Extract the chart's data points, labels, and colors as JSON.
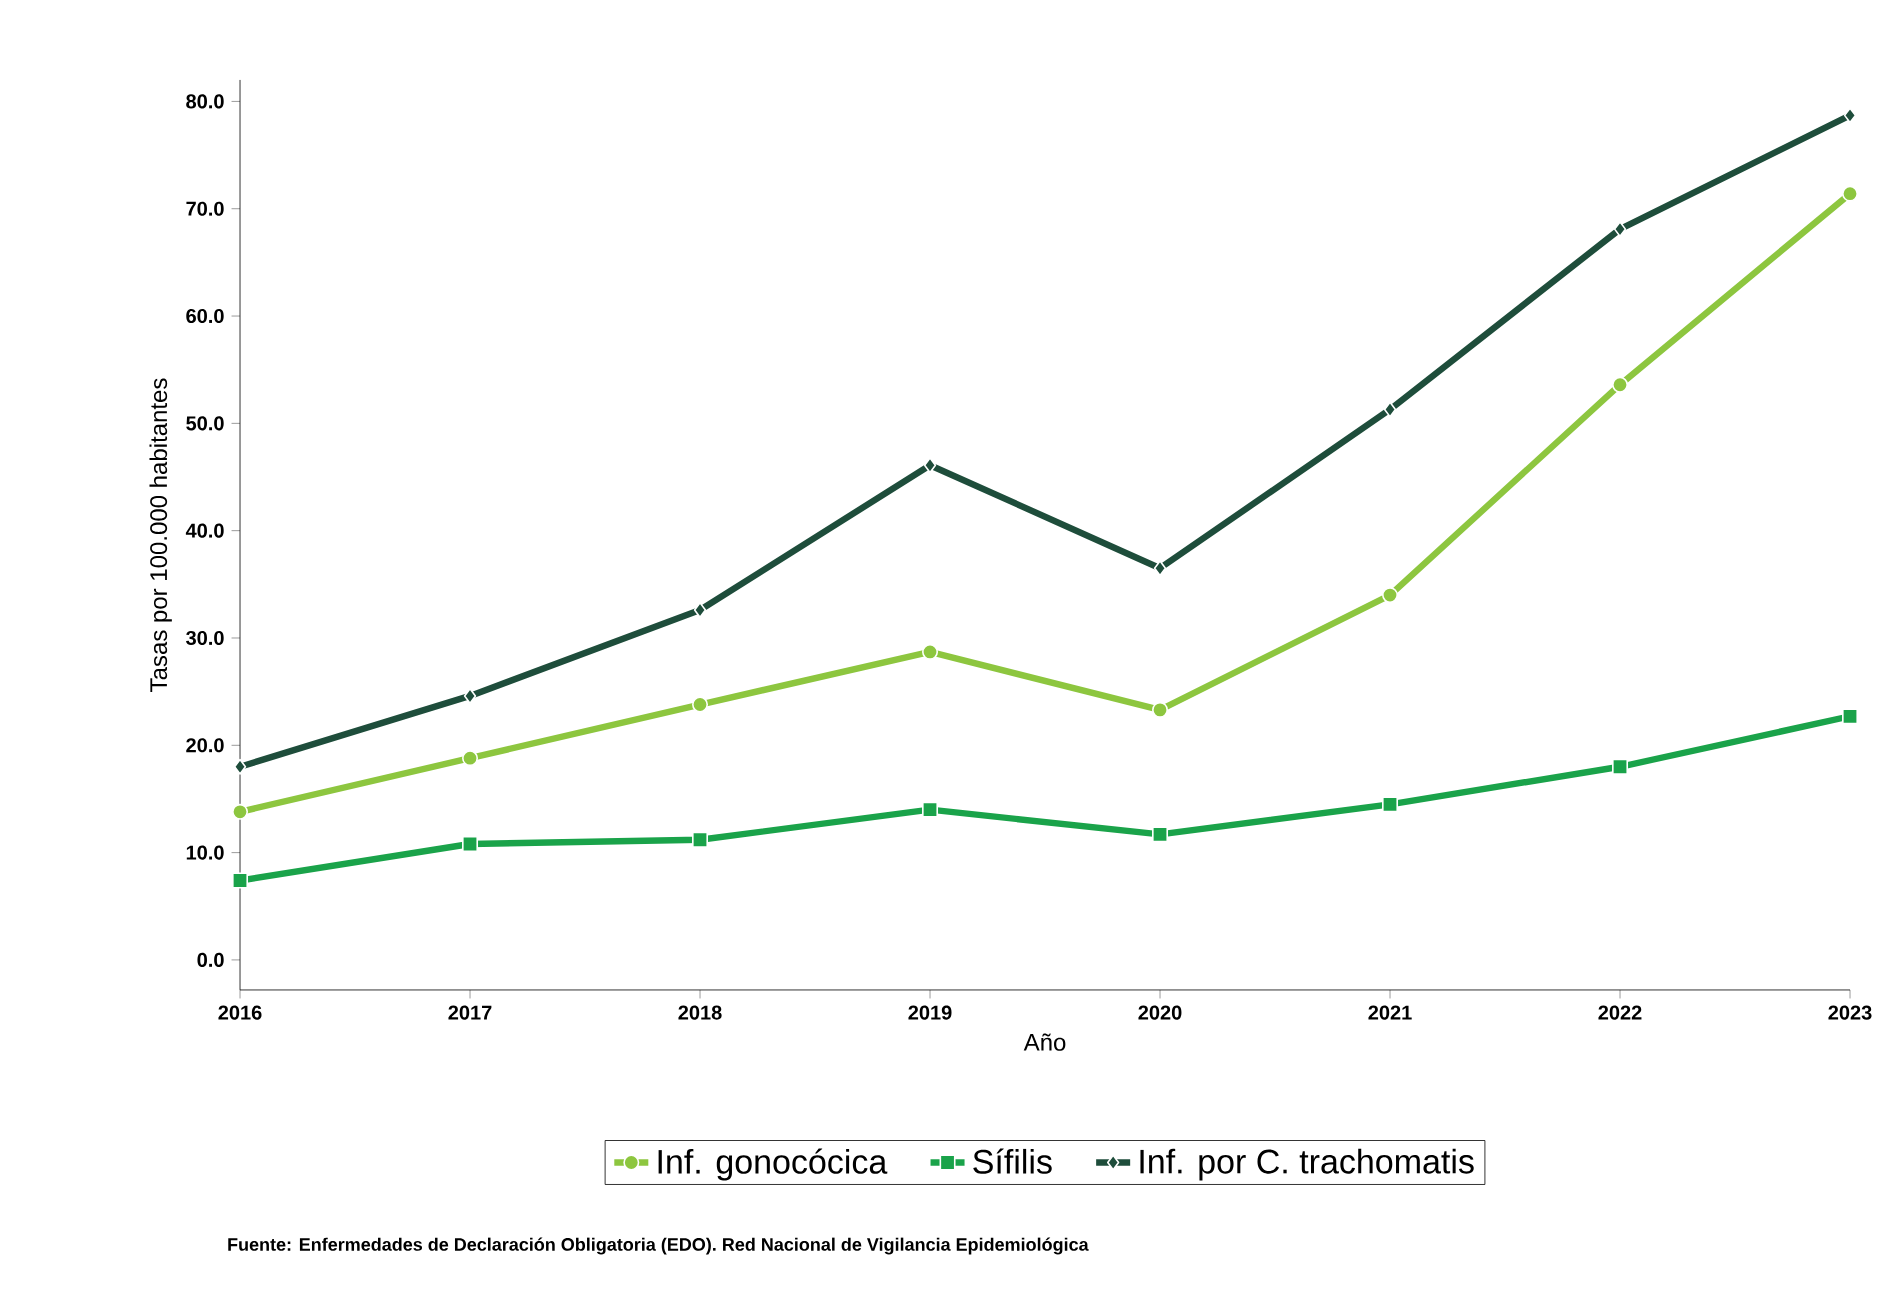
{
  "chart_data": {
    "type": "line",
    "xlabel": "Año",
    "ylabel": "Tasas por 100.000 habitantes",
    "x": [
      2016,
      2017,
      2018,
      2019,
      2020,
      2021,
      2022,
      2023
    ],
    "series": [
      {
        "name": "Inf. gonocócica",
        "color": "#8dc63f",
        "marker": "circle",
        "values": [
          13.8,
          18.8,
          23.8,
          28.7,
          23.3,
          34.0,
          53.6,
          71.4
        ]
      },
      {
        "name": "Sífilis",
        "color": "#1aa34a",
        "marker": "square",
        "values": [
          7.4,
          10.8,
          11.2,
          14.0,
          11.7,
          14.5,
          18.0,
          22.7
        ]
      },
      {
        "name": "Inf. por C. trachomatis",
        "color": "#1e4d3b",
        "marker": "diamond",
        "values": [
          18.0,
          24.6,
          32.6,
          46.1,
          36.5,
          51.3,
          68.1,
          78.7
        ]
      }
    ],
    "xlim": [
      2016,
      2023
    ],
    "ylim": [
      -2.8,
      82
    ],
    "xticks": [
      2016,
      2017,
      2018,
      2019,
      2020,
      2021,
      2022,
      2023
    ],
    "yticks": [
      {
        "value": 0,
        "label": "0.0"
      },
      {
        "value": 10,
        "label": "10.0"
      },
      {
        "value": 20,
        "label": "20.0"
      },
      {
        "value": 30,
        "label": "30.0"
      },
      {
        "value": 40,
        "label": "40.0"
      },
      {
        "value": 50,
        "label": "50.0"
      },
      {
        "value": 60,
        "label": "60.0"
      },
      {
        "value": 70,
        "label": "70.0"
      },
      {
        "value": 80,
        "label": "80.0"
      }
    ],
    "grid": false,
    "legend": "bottom",
    "line_style": "solid",
    "annotations": [
      "Fuente: Enfermedades de Declaración Obligatoria (EDO). Red Nacional de Vigilancia Epidemiológica"
    ]
  }
}
